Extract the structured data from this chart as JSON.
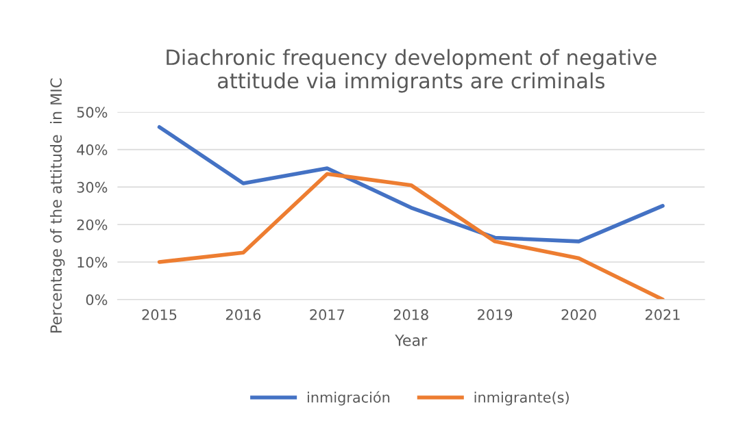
{
  "chart_data": {
    "type": "line",
    "title": "Diachronic frequency development of negative\nattitude via immigrants are criminals",
    "xlabel": "Year",
    "ylabel": "Percentage of the attitude  in MIC",
    "categories": [
      "2015",
      "2016",
      "2017",
      "2018",
      "2019",
      "2020",
      "2021"
    ],
    "series": [
      {
        "name": "inmigración",
        "color": "#4472c4",
        "values": [
          46,
          31,
          35,
          24.5,
          16.5,
          15.5,
          25
        ]
      },
      {
        "name": "inmigrante(s)",
        "color": "#ed7d31",
        "values": [
          10,
          12.5,
          33.5,
          30.5,
          15.5,
          11,
          0
        ]
      }
    ],
    "ylim": [
      0,
      50
    ],
    "yticks": [
      {
        "value": 0,
        "label": "0%"
      },
      {
        "value": 10,
        "label": "10%"
      },
      {
        "value": 20,
        "label": "20%"
      },
      {
        "value": 30,
        "label": "30%"
      },
      {
        "value": 40,
        "label": "40%"
      },
      {
        "value": 50,
        "label": "50%"
      }
    ],
    "grid": "y",
    "legend": "bottom",
    "marker": "none",
    "line_style": "solid"
  }
}
